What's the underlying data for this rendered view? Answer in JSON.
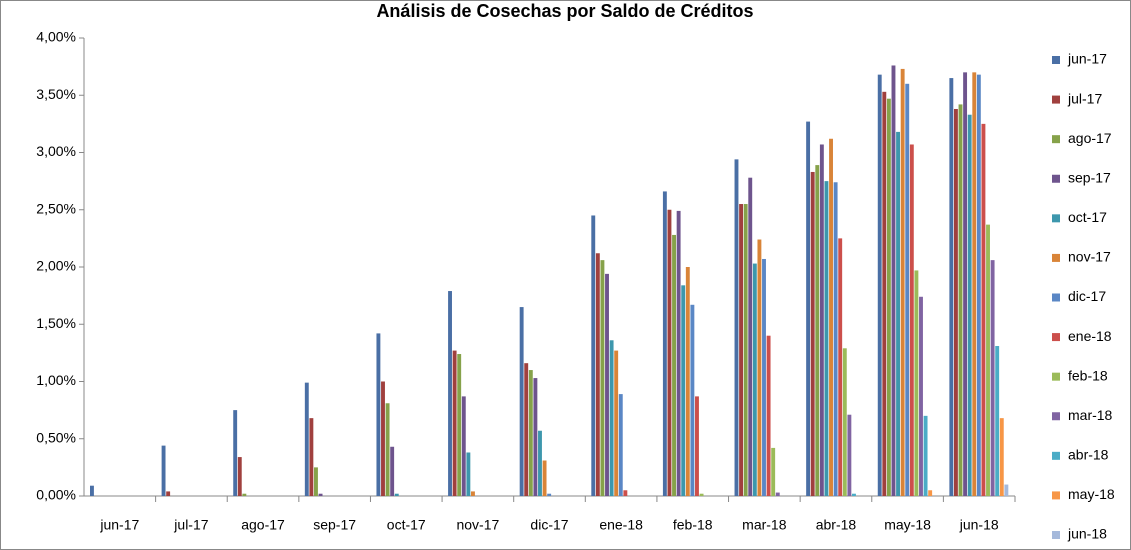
{
  "chart_data": {
    "type": "bar",
    "title": "Análisis de Cosechas por Saldo de Créditos",
    "categories": [
      "jun-17",
      "jul-17",
      "ago-17",
      "sep-17",
      "oct-17",
      "nov-17",
      "dic-17",
      "ene-18",
      "feb-18",
      "mar-18",
      "abr-18",
      "may-18",
      "jun-18"
    ],
    "ylim": [
      0,
      4
    ],
    "yticks": [
      {
        "value": 0,
        "label": "0,00%"
      },
      {
        "value": 0.5,
        "label": "0,50%"
      },
      {
        "value": 1,
        "label": "1,00%"
      },
      {
        "value": 1.5,
        "label": "1,50%"
      },
      {
        "value": 2,
        "label": "2,00%"
      },
      {
        "value": 2.5,
        "label": "2,50%"
      },
      {
        "value": 3,
        "label": "3,00%"
      },
      {
        "value": 3.5,
        "label": "3,50%"
      },
      {
        "value": 4,
        "label": "4,00%"
      }
    ],
    "legend": "right",
    "series": [
      {
        "name": "jun-17",
        "color": "#4a6fa5",
        "values": [
          0.09,
          0.44,
          0.75,
          0.99,
          1.42,
          1.79,
          1.65,
          2.45,
          2.66,
          2.94,
          3.27,
          3.68,
          3.65
        ]
      },
      {
        "name": "jul-17",
        "color": "#a0403e",
        "values": [
          null,
          0.04,
          0.34,
          0.68,
          1.0,
          1.27,
          1.16,
          2.12,
          2.5,
          2.55,
          2.83,
          3.53,
          3.38
        ]
      },
      {
        "name": "ago-17",
        "color": "#86a24a",
        "values": [
          null,
          null,
          0.02,
          0.25,
          0.81,
          1.24,
          1.1,
          2.06,
          2.28,
          2.55,
          2.89,
          3.47,
          3.42
        ]
      },
      {
        "name": "sep-17",
        "color": "#6e548d",
        "values": [
          null,
          null,
          null,
          0.02,
          0.43,
          0.87,
          1.03,
          1.94,
          2.49,
          2.78,
          3.07,
          3.76,
          3.7
        ]
      },
      {
        "name": "oct-17",
        "color": "#3d97ad",
        "values": [
          null,
          null,
          null,
          null,
          0.02,
          0.38,
          0.57,
          1.36,
          1.84,
          2.03,
          2.75,
          3.18,
          3.33
        ]
      },
      {
        "name": "nov-17",
        "color": "#d98438",
        "values": [
          null,
          null,
          null,
          null,
          null,
          0.04,
          0.31,
          1.27,
          2.0,
          2.24,
          3.12,
          3.73,
          3.7
        ]
      },
      {
        "name": "dic-17",
        "color": "#5a87c5",
        "values": [
          null,
          null,
          null,
          null,
          null,
          null,
          0.02,
          0.89,
          1.67,
          2.07,
          2.74,
          3.6,
          3.68
        ]
      },
      {
        "name": "ene-18",
        "color": "#cc4f4b",
        "values": [
          null,
          null,
          null,
          null,
          null,
          null,
          null,
          0.05,
          0.87,
          1.4,
          2.25,
          3.07,
          3.25
        ]
      },
      {
        "name": "feb-18",
        "color": "#9bbb59",
        "values": [
          null,
          null,
          null,
          null,
          null,
          null,
          null,
          null,
          0.02,
          0.42,
          1.29,
          1.97,
          2.37
        ]
      },
      {
        "name": "mar-18",
        "color": "#8064a2",
        "values": [
          null,
          null,
          null,
          null,
          null,
          null,
          null,
          null,
          null,
          0.03,
          0.71,
          1.74,
          2.06
        ]
      },
      {
        "name": "abr-18",
        "color": "#4bacc6",
        "values": [
          null,
          null,
          null,
          null,
          null,
          null,
          null,
          null,
          null,
          null,
          0.02,
          0.7,
          1.31
        ]
      },
      {
        "name": "may-18",
        "color": "#f79646",
        "values": [
          null,
          null,
          null,
          null,
          null,
          null,
          null,
          null,
          null,
          null,
          null,
          0.05,
          0.68
        ]
      },
      {
        "name": "jun-18",
        "color": "#a5b9db",
        "values": [
          null,
          null,
          null,
          null,
          null,
          null,
          null,
          null,
          null,
          null,
          null,
          null,
          0.1
        ]
      }
    ]
  }
}
